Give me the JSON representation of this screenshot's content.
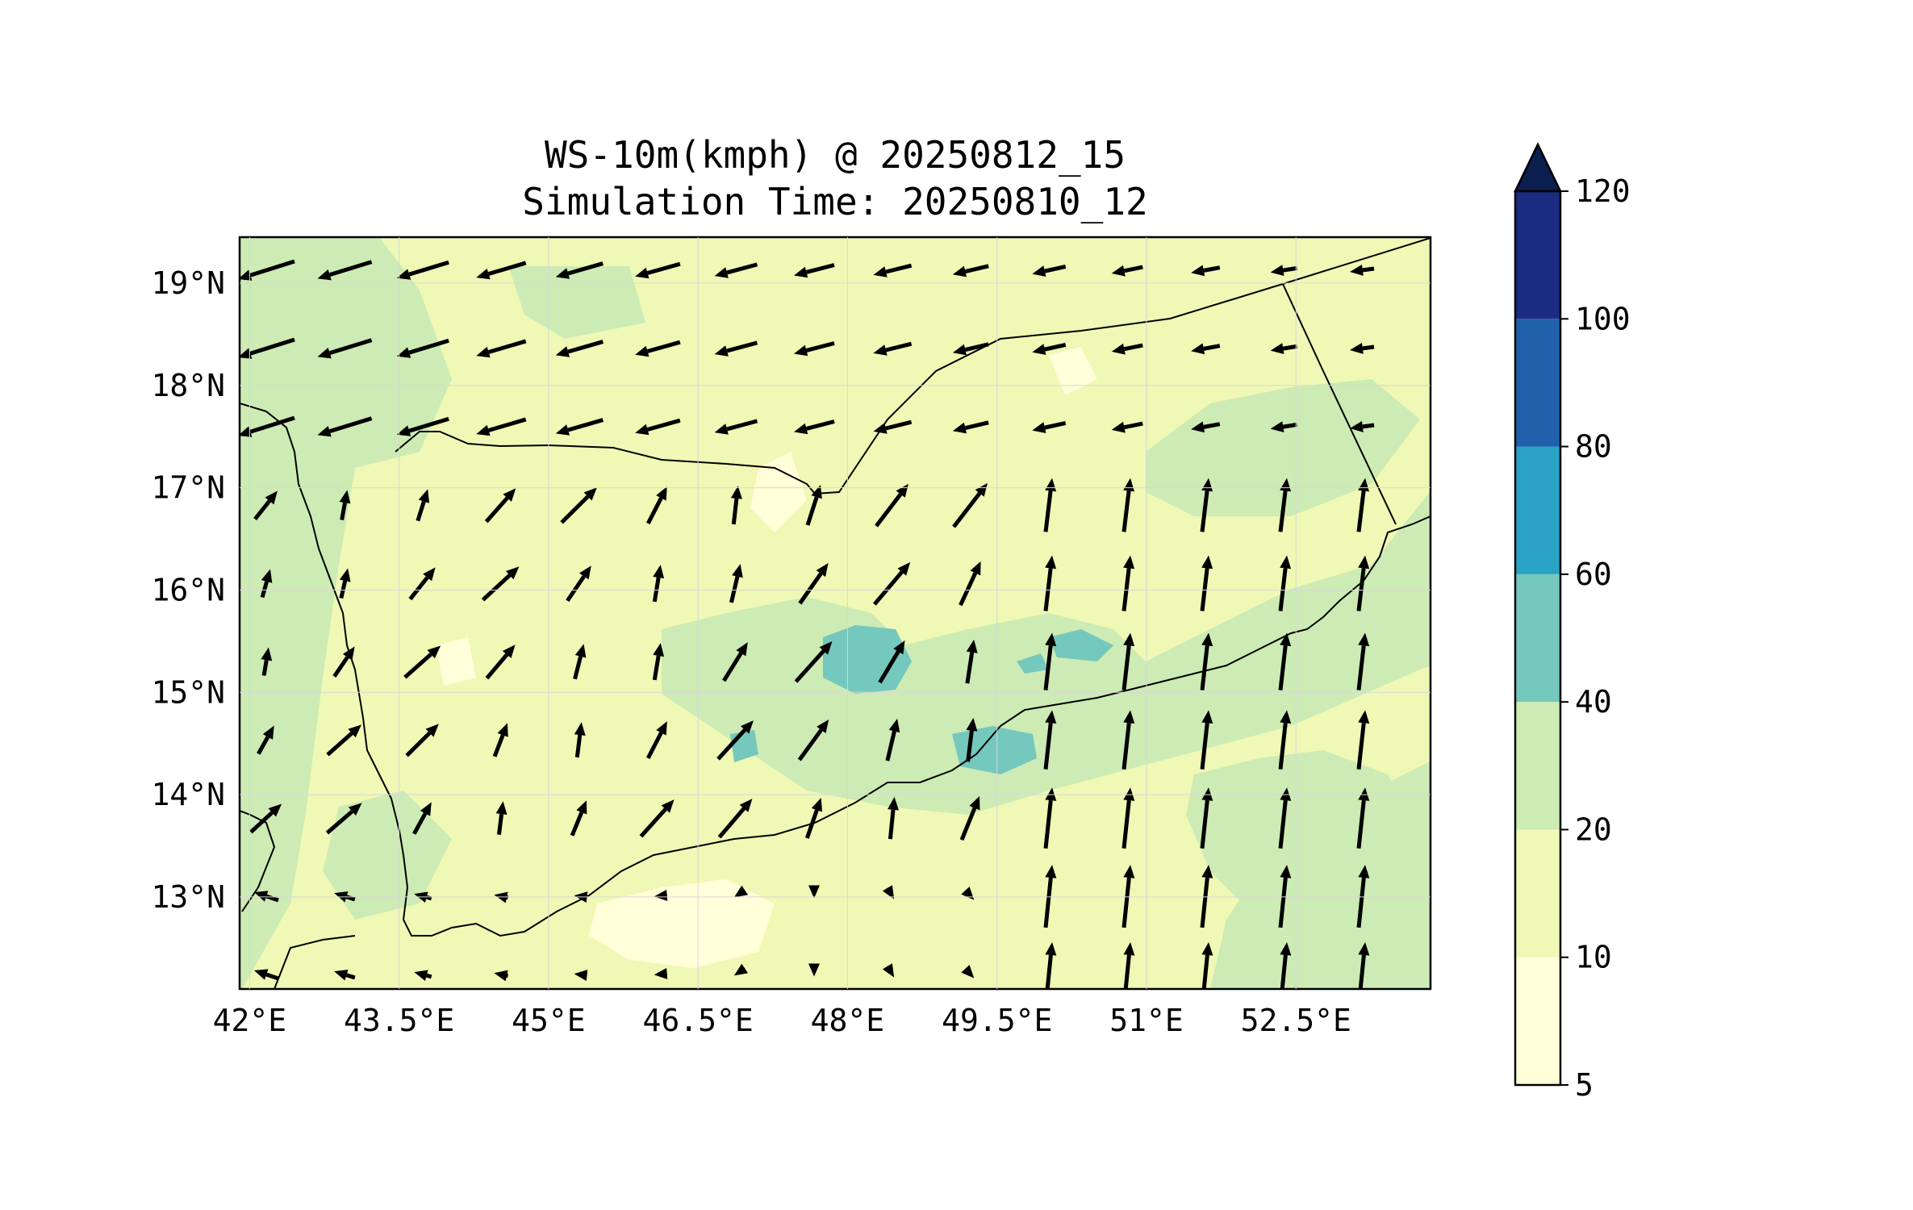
{
  "title": {
    "line1": "WS-10m(kmph) @ 20250812_15",
    "line2": "Simulation Time: 20250810_12"
  },
  "map": {
    "lon_range": [
      41.9,
      53.85
    ],
    "lat_range": [
      12.1,
      19.45
    ],
    "x_ticks": [
      "42°E",
      "43.5°E",
      "45°E",
      "46.5°E",
      "48°E",
      "49.5°E",
      "51°E",
      "52.5°E"
    ],
    "x_tick_values": [
      42,
      43.5,
      45,
      46.5,
      48,
      49.5,
      51,
      52.5
    ],
    "y_ticks": [
      "19°N",
      "18°N",
      "17°N",
      "16°N",
      "15°N",
      "14°N",
      "13°N"
    ],
    "y_tick_values": [
      19,
      18,
      17,
      16,
      15,
      14,
      13
    ],
    "colors": {
      "cat_5_10": "#ffffd9",
      "cat_10_20": "#eff8b4",
      "cat_20_40": "#cdebb4",
      "cat_40_60": "#75c8bd",
      "coastline": "#000000",
      "arrow": "#000000"
    }
  },
  "colorbar": {
    "levels": [
      "5",
      "10",
      "20",
      "40",
      "60",
      "80",
      "100",
      "120"
    ],
    "colors": [
      "#ffffd9",
      "#eff8b4",
      "#cdebb4",
      "#75c8bd",
      "#2ba3c4",
      "#2161ab",
      "#1c2c80"
    ],
    "extend_color": "#0b1f4f",
    "extend": "max"
  }
}
